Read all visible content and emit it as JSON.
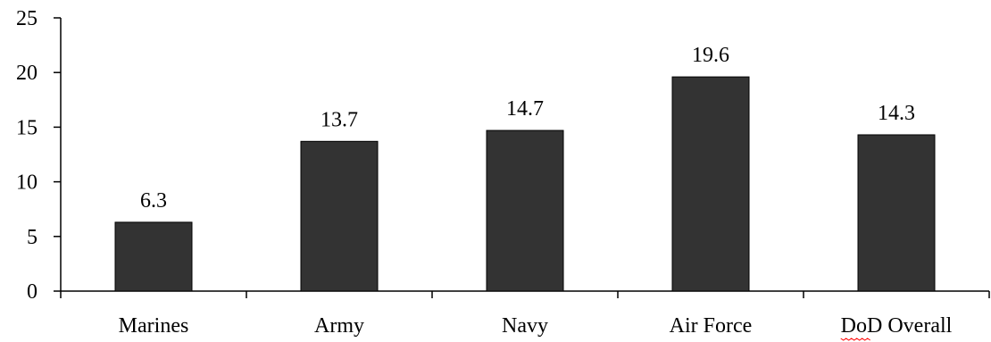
{
  "chart_data": {
    "type": "bar",
    "categories": [
      "Marines",
      "Army",
      "Navy",
      "Air Force",
      "DoD Overall"
    ],
    "values": [
      6.3,
      13.7,
      14.7,
      19.6,
      14.3
    ],
    "value_labels": [
      "6.3",
      "13.7",
      "14.7",
      "19.6",
      "14.3"
    ],
    "title": "",
    "xlabel": "",
    "ylabel": "",
    "ylim": [
      0,
      25
    ],
    "yticks": [
      0,
      5,
      10,
      15,
      20,
      25
    ],
    "ytick_labels": [
      "0",
      "5",
      "10",
      "15",
      "20",
      "25"
    ],
    "grid": false,
    "legend": "none",
    "bar_color": "#333333"
  }
}
